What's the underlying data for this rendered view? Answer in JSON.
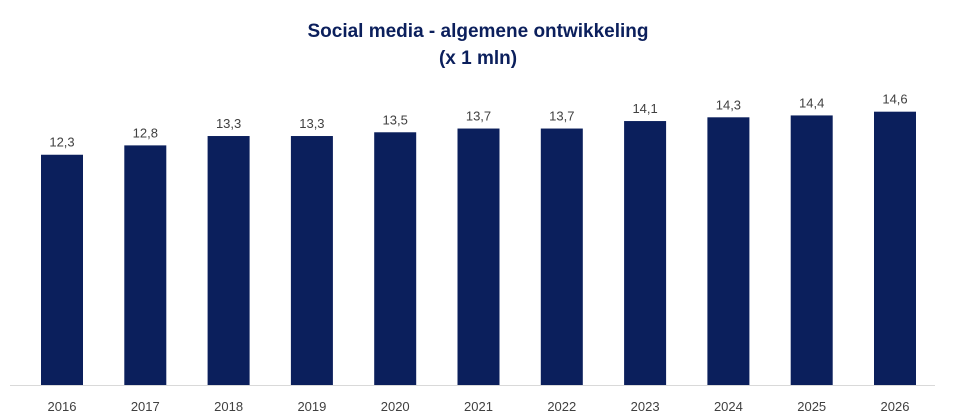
{
  "chart_data": {
    "type": "bar",
    "title": "Social media - algemene ontwikkeling",
    "subtitle": "(x 1 mln)",
    "categories": [
      "2016",
      "2017",
      "2018",
      "2019",
      "2020",
      "2021",
      "2022",
      "2023",
      "2024",
      "2025",
      "2026"
    ],
    "values": [
      12.3,
      12.8,
      13.3,
      13.3,
      13.5,
      13.7,
      13.7,
      14.1,
      14.3,
      14.4,
      14.6
    ],
    "value_labels": [
      "12,3",
      "12,8",
      "13,3",
      "13,3",
      "13,5",
      "13,7",
      "13,7",
      "14,1",
      "14,3",
      "14,4",
      "14,6"
    ],
    "xlabel": "",
    "ylabel": "",
    "ylim": [
      0,
      16.5
    ],
    "grid": false,
    "legend": "none",
    "bar_color": "#0b1f5c",
    "axis_color": "#d9d9d9"
  }
}
